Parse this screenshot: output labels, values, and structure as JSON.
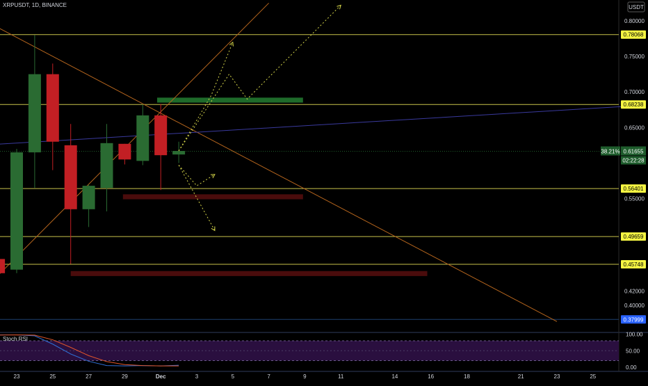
{
  "header": {
    "title": "XRPUSDT, 1D, BINANCE"
  },
  "currency": "USDT",
  "colors": {
    "up": "#2a6b32",
    "down": "#c21f24",
    "hline": "#c8c24a",
    "trend": "#b5651d",
    "blue_line": "#3a3a9e",
    "projection": "#d6d64a",
    "green_zone": "#1e6b2a",
    "red_zone": "#4a0c0c",
    "stoch_k": "#2f6fd6",
    "stoch_d": "#e2562b",
    "stoch_band": "#2a0f3f"
  },
  "chart_data": [
    {
      "type": "candlestick",
      "title": "XRPUSDT, 1D, BINANCE",
      "ylim": [
        0.36,
        0.82
      ],
      "y_ticks": [
        {
          "value": 0.8,
          "label": "0.80000"
        },
        {
          "value": 0.75,
          "label": "0.75000"
        },
        {
          "value": 0.7,
          "label": "0.70000"
        },
        {
          "value": 0.65,
          "label": "0.65000"
        },
        {
          "value": 0.55,
          "label": "0.55000"
        },
        {
          "value": 0.4,
          "label": "0.40000"
        }
      ],
      "x_ticks": [
        {
          "day": 23,
          "label": "23"
        },
        {
          "day": 25,
          "label": "25"
        },
        {
          "day": 27,
          "label": "27"
        },
        {
          "day": 29,
          "label": "29"
        },
        {
          "day": 31,
          "label": "Dec"
        },
        {
          "day": 33,
          "label": "3"
        },
        {
          "day": 35,
          "label": "5"
        },
        {
          "day": 37,
          "label": "7"
        },
        {
          "day": 39,
          "label": "9"
        },
        {
          "day": 41,
          "label": "11"
        },
        {
          "day": 44,
          "label": "14"
        },
        {
          "day": 46,
          "label": "16"
        },
        {
          "day": 48,
          "label": "18"
        },
        {
          "day": 51,
          "label": "21"
        },
        {
          "day": 53,
          "label": "23"
        },
        {
          "day": 55,
          "label": "25"
        }
      ],
      "candles": [
        {
          "day": 22,
          "open": 0.465,
          "high": 0.5,
          "low": 0.405,
          "close": 0.445
        },
        {
          "day": 23,
          "open": 0.45,
          "high": 0.62,
          "low": 0.445,
          "close": 0.615
        },
        {
          "day": 24,
          "open": 0.615,
          "high": 0.78,
          "low": 0.565,
          "close": 0.725
        },
        {
          "day": 25,
          "open": 0.725,
          "high": 0.74,
          "low": 0.59,
          "close": 0.63
        },
        {
          "day": 26,
          "open": 0.625,
          "high": 0.655,
          "low": 0.458,
          "close": 0.535
        },
        {
          "day": 27,
          "open": 0.535,
          "high": 0.57,
          "low": 0.51,
          "close": 0.568
        },
        {
          "day": 28,
          "open": 0.565,
          "high": 0.655,
          "low": 0.532,
          "close": 0.628
        },
        {
          "day": 29,
          "open": 0.627,
          "high": 0.627,
          "low": 0.598,
          "close": 0.605
        },
        {
          "day": 30,
          "open": 0.603,
          "high": 0.683,
          "low": 0.597,
          "close": 0.667
        },
        {
          "day": 31,
          "open": 0.667,
          "high": 0.683,
          "low": 0.562,
          "close": 0.611
        },
        {
          "day": 32,
          "open": 0.612,
          "high": 0.63,
          "low": 0.6,
          "close": 0.617
        }
      ],
      "horizontal_levels": [
        {
          "value": 0.78068,
          "label": "0.78068"
        },
        {
          "value": 0.68238,
          "label": "0.68238"
        },
        {
          "value": 0.56401,
          "label": "0.56401"
        },
        {
          "value": 0.49659,
          "label": "0.49659"
        },
        {
          "value": 0.45748,
          "label": "0.45748"
        }
      ],
      "price_marker": {
        "value": 0.61655,
        "label": "0.61655",
        "fib": "38.21%",
        "countdown": "02:22:28"
      },
      "last_label": {
        "value": 0.37999,
        "label": "0.37999"
      },
      "trend_lines": [
        {
          "from": {
            "day": 20.5,
            "price": 0.81
          },
          "to": {
            "day": 53.0,
            "price": 0.377
          }
        },
        {
          "from": {
            "day": 21.5,
            "price": 0.43
          },
          "to": {
            "day": 37.0,
            "price": 0.825
          }
        }
      ],
      "blue_line": {
        "from": {
          "day": 21.0,
          "price": 0.625
        },
        "to": {
          "day": 57.0,
          "price": 0.68
        }
      },
      "zones": [
        {
          "type": "supply",
          "day_start": 30.8,
          "day_end": 38.9,
          "top": 0.692,
          "bottom": 0.685
        },
        {
          "type": "demand",
          "day_start": 28.9,
          "day_end": 38.9,
          "top": 0.556,
          "bottom": 0.549
        },
        {
          "type": "demand",
          "day_start": 26.0,
          "day_end": 45.8,
          "top": 0.448,
          "bottom": 0.441
        }
      ],
      "projections": [
        [
          {
            "day": 32.0,
            "price": 0.617
          },
          {
            "day": 33.8,
            "price": 0.695
          },
          {
            "day": 35.0,
            "price": 0.77
          }
        ],
        [
          {
            "day": 32.0,
            "price": 0.617
          },
          {
            "day": 34.8,
            "price": 0.725
          },
          {
            "day": 35.8,
            "price": 0.69
          },
          {
            "day": 41.0,
            "price": 0.822
          }
        ],
        [
          {
            "day": 32.0,
            "price": 0.597
          },
          {
            "day": 33.0,
            "price": 0.568
          },
          {
            "day": 34.0,
            "price": 0.584
          }
        ],
        [
          {
            "day": 32.0,
            "price": 0.597
          },
          {
            "day": 34.0,
            "price": 0.505
          }
        ]
      ]
    },
    {
      "type": "line",
      "title": "Stoch RSI",
      "ylim": [
        0,
        100
      ],
      "y_ticks": [
        {
          "value": 100,
          "label": "100.00"
        },
        {
          "value": 50,
          "label": "50.00"
        },
        {
          "value": 0,
          "label": "0.00"
        }
      ],
      "band": [
        20,
        80
      ],
      "series": [
        {
          "values": [
            {
              "day": 21.2,
              "value": 98
            },
            {
              "day": 23.0,
              "value": 98
            },
            {
              "day": 24.0,
              "value": 95
            },
            {
              "day": 25.0,
              "value": 70
            },
            {
              "day": 26.0,
              "value": 40
            },
            {
              "day": 27.0,
              "value": 18
            },
            {
              "day": 28.0,
              "value": 5
            },
            {
              "day": 29.0,
              "value": 4
            },
            {
              "day": 30.0,
              "value": 5
            },
            {
              "day": 31.0,
              "value": 4
            },
            {
              "day": 32.0,
              "value": 6
            }
          ]
        },
        {
          "values": [
            {
              "day": 21.2,
              "value": 97
            },
            {
              "day": 23.0,
              "value": 98
            },
            {
              "day": 24.0,
              "value": 97
            },
            {
              "day": 25.0,
              "value": 83
            },
            {
              "day": 26.0,
              "value": 60
            },
            {
              "day": 27.0,
              "value": 35
            },
            {
              "day": 28.0,
              "value": 17
            },
            {
              "day": 29.0,
              "value": 8
            },
            {
              "day": 30.0,
              "value": 5
            },
            {
              "day": 31.0,
              "value": 4
            },
            {
              "day": 32.0,
              "value": 4
            }
          ]
        }
      ]
    }
  ]
}
